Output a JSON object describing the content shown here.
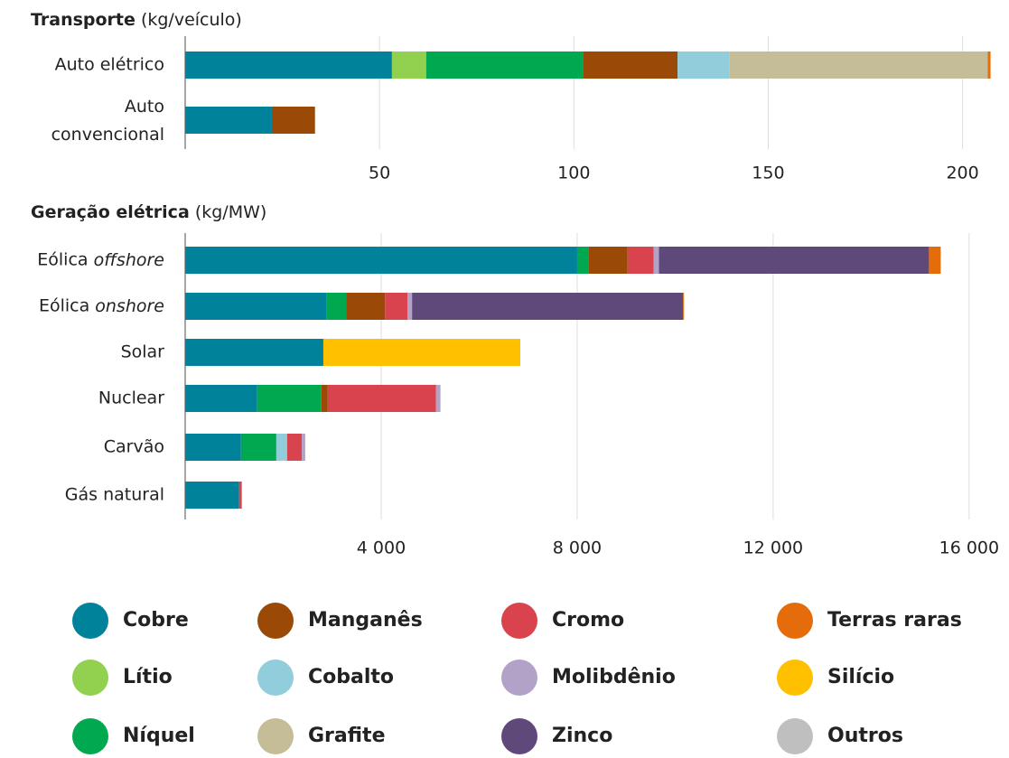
{
  "chart_data": [
    {
      "type": "stacked-bar",
      "title": "Transporte",
      "unit": "(kg/veículo)",
      "categories": [
        "Auto elétrico",
        "Auto\nconvencional"
      ],
      "series": [
        {
          "name": "Cobre",
          "color": "#00829b",
          "values": [
            53.2,
            22.3
          ]
        },
        {
          "name": "Lítio",
          "color": "#92d050",
          "values": [
            8.8,
            0
          ]
        },
        {
          "name": "Níquel",
          "color": "#00a84f",
          "values": [
            40.3,
            0
          ]
        },
        {
          "name": "Manganês",
          "color": "#9a4a06",
          "values": [
            24.4,
            11.1
          ]
        },
        {
          "name": "Cobalto",
          "color": "#92cddc",
          "values": [
            13.4,
            0
          ]
        },
        {
          "name": "Grafite",
          "color": "#c4bd97",
          "values": [
            66.4,
            0
          ]
        },
        {
          "name": "Terras raras",
          "color": "#e46c0a",
          "values": [
            0.7,
            0
          ]
        }
      ],
      "xlim": [
        0,
        208
      ],
      "xticks": [
        50,
        100,
        150,
        200
      ],
      "grid": true
    },
    {
      "type": "stacked-bar",
      "title": "Geração elétrica",
      "unit": "(kg/MW)",
      "categories": [
        "Eólica offshore",
        "Eólica onshore",
        "Solar",
        "Nuclear",
        "Carvão",
        "Gás natural"
      ],
      "series": [
        {
          "name": "Cobre",
          "color": "#00829b",
          "values": [
            8000,
            2890,
            2820,
            1470,
            1140,
            1100
          ]
        },
        {
          "name": "Níquel",
          "color": "#00a84f",
          "values": [
            240,
            400,
            0,
            1310,
            720,
            0
          ]
        },
        {
          "name": "Manganês",
          "color": "#9a4a06",
          "values": [
            790,
            790,
            0,
            130,
            0,
            0
          ]
        },
        {
          "name": "Cobalto",
          "color": "#92cddc",
          "values": [
            0,
            0,
            0,
            0,
            220,
            0
          ]
        },
        {
          "name": "Cromo",
          "color": "#d9434e",
          "values": [
            530,
            460,
            0,
            2210,
            300,
            55
          ]
        },
        {
          "name": "Molibdênio",
          "color": "#b3a2c7",
          "values": [
            110,
            90,
            0,
            90,
            70,
            0
          ]
        },
        {
          "name": "Zinco",
          "color": "#5f497a",
          "values": [
            5510,
            5530,
            0,
            0,
            0,
            0
          ]
        },
        {
          "name": "Silício",
          "color": "#ffc000",
          "values": [
            0,
            0,
            4020,
            0,
            0,
            0
          ]
        },
        {
          "name": "Terras raras",
          "color": "#e46c0a",
          "values": [
            240,
            20,
            0,
            0,
            0,
            0
          ]
        }
      ],
      "xlim": [
        0,
        16500
      ],
      "xticks": [
        {
          "value": 4000,
          "label": "4 000"
        },
        {
          "value": 8000,
          "label": "8 000"
        },
        {
          "value": 12000,
          "label": "12 000"
        },
        {
          "value": 16000,
          "label": "16 000"
        }
      ],
      "grid": true
    }
  ],
  "legend": [
    {
      "name": "Cobre",
      "color": "#00829b"
    },
    {
      "name": "Lítio",
      "color": "#92d050"
    },
    {
      "name": "Níquel",
      "color": "#00a84f"
    },
    {
      "name": "Manganês",
      "color": "#9a4a06"
    },
    {
      "name": "Cobalto",
      "color": "#92cddc"
    },
    {
      "name": "Grafite",
      "color": "#c4bd97"
    },
    {
      "name": "Cromo",
      "color": "#d9434e"
    },
    {
      "name": "Molibdênio",
      "color": "#b3a2c7"
    },
    {
      "name": "Zinco",
      "color": "#5f497a"
    },
    {
      "name": "Terras raras",
      "color": "#e46c0a"
    },
    {
      "name": "Silício",
      "color": "#ffc000"
    },
    {
      "name": "Outros",
      "color": "#bfbfbf"
    }
  ]
}
